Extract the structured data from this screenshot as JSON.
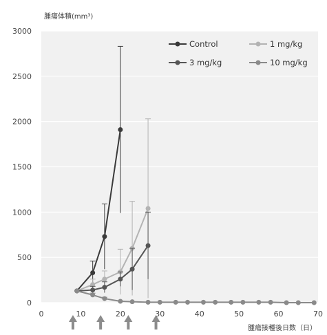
{
  "chart_data": {
    "type": "line",
    "ylabel": "腫瘍体積(mm³)",
    "xlabel": "腫瘍接種後日数（日）",
    "xlim": [
      0,
      70
    ],
    "ylim": [
      0,
      3000
    ],
    "x_ticks": [
      0,
      10,
      20,
      30,
      40,
      50,
      60,
      70
    ],
    "y_ticks": [
      0,
      500,
      1000,
      1500,
      2000,
      2500,
      3000
    ],
    "grid": "horizontal",
    "legend_position": "top-right",
    "dosing_days": [
      8,
      15,
      22,
      29
    ],
    "series": [
      {
        "name": "Control",
        "color": "#3a3a3a",
        "marker": "circle",
        "x": [
          9,
          13,
          16,
          20
        ],
        "y": [
          130,
          330,
          730,
          1910
        ],
        "err": [
          0,
          130,
          360,
          920
        ]
      },
      {
        "name": "1 mg/kg",
        "color": "#b3b3b3",
        "marker": "circle",
        "x": [
          9,
          13,
          16,
          20,
          23,
          27
        ],
        "y": [
          130,
          200,
          260,
          340,
          600,
          1040
        ],
        "err": [
          0,
          60,
          90,
          250,
          520,
          990
        ]
      },
      {
        "name": "3 mg/kg",
        "color": "#555555",
        "marker": "circle",
        "x": [
          9,
          13,
          16,
          20,
          23,
          27
        ],
        "y": [
          130,
          140,
          170,
          260,
          370,
          630
        ],
        "err": [
          0,
          40,
          60,
          80,
          230,
          370
        ]
      },
      {
        "name": "10 mg/kg",
        "color": "#8a8a8a",
        "marker": "circle",
        "x": [
          9,
          13,
          16,
          20,
          23,
          27,
          30,
          34,
          37,
          41,
          44,
          48,
          51,
          55,
          58,
          62,
          65,
          69
        ],
        "y": [
          130,
          85,
          45,
          15,
          10,
          5,
          5,
          5,
          5,
          5,
          5,
          5,
          5,
          5,
          5,
          0,
          0,
          0
        ],
        "err": [
          0,
          20,
          15,
          5,
          0,
          0,
          0,
          0,
          0,
          0,
          0,
          0,
          0,
          0,
          0,
          0,
          0,
          0
        ]
      }
    ]
  },
  "colors": {
    "plot_bg": "#f1f1f1",
    "grid": "#ffffff",
    "axis_text": "#444444",
    "arrow": "#8c8c8c"
  }
}
